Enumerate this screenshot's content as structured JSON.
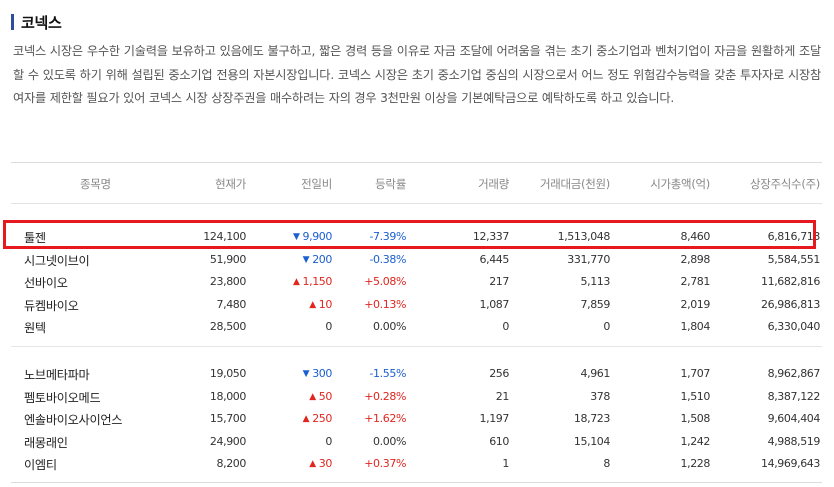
{
  "header": {
    "title": "코넥스"
  },
  "description": "코넥스 시장은 우수한 기술력을 보유하고 있음에도 불구하고, 짧은 경력 등을 이유로 자금 조달에 어려움을 겪는 초기 중소기업과 벤처기업이 자금을 원활하게 조달할 수 있도록 하기 위해 설립된 중소기업 전용의 자본시장입니다. 코넥스 시장은 초기 중소기업 중심의 시장으로서 어느 정도 위험감수능력을 갖춘 투자자로 시장참여자를 제한할 필요가 있어 코넥스 시장 상장주권을 매수하려는 자의 경우 3천만원 이상을 기본예탁금으로 예탁하도록 하고 있습니다.",
  "table": {
    "columns": [
      "종목명",
      "현재가",
      "전일비",
      "등락률",
      "거래량",
      "거래대금(천원)",
      "시가총액(억)",
      "상장주식수(주)"
    ],
    "groups": [
      [
        {
          "name": "툴젠",
          "price": "124,100",
          "dir": "down",
          "arrow": "▼",
          "change": "9,900",
          "rate": "-7.39%",
          "volume": "12,337",
          "amount": "1,513,048",
          "cap": "8,460",
          "shares": "6,816,713"
        },
        {
          "name": "시그넷이브이",
          "price": "51,900",
          "dir": "down",
          "arrow": "▼",
          "change": "200",
          "rate": "-0.38%",
          "volume": "6,445",
          "amount": "331,770",
          "cap": "2,898",
          "shares": "5,584,551"
        },
        {
          "name": "선바이오",
          "price": "23,800",
          "dir": "up",
          "arrow": "▲",
          "change": "1,150",
          "rate": "+5.08%",
          "volume": "217",
          "amount": "5,113",
          "cap": "2,781",
          "shares": "11,682,816"
        },
        {
          "name": "듀켐바이오",
          "price": "7,480",
          "dir": "up",
          "arrow": "▲",
          "change": "10",
          "rate": "+0.13%",
          "volume": "1,087",
          "amount": "7,859",
          "cap": "2,019",
          "shares": "26,986,813"
        },
        {
          "name": "원텍",
          "price": "28,500",
          "dir": "flat",
          "arrow": "",
          "change": "0",
          "rate": "0.00%",
          "volume": "0",
          "amount": "0",
          "cap": "1,804",
          "shares": "6,330,040"
        }
      ],
      [
        {
          "name": "노브메타파마",
          "price": "19,050",
          "dir": "down",
          "arrow": "▼",
          "change": "300",
          "rate": "-1.55%",
          "volume": "256",
          "amount": "4,961",
          "cap": "1,707",
          "shares": "8,962,867"
        },
        {
          "name": "펨토바이오메드",
          "price": "18,000",
          "dir": "up",
          "arrow": "▲",
          "change": "50",
          "rate": "+0.28%",
          "volume": "21",
          "amount": "378",
          "cap": "1,510",
          "shares": "8,387,122"
        },
        {
          "name": "엔솔바이오사이언스",
          "price": "15,700",
          "dir": "up",
          "arrow": "▲",
          "change": "250",
          "rate": "+1.62%",
          "volume": "1,197",
          "amount": "18,723",
          "cap": "1,508",
          "shares": "9,604,404"
        },
        {
          "name": "래몽래인",
          "price": "24,900",
          "dir": "flat",
          "arrow": "",
          "change": "0",
          "rate": "0.00%",
          "volume": "610",
          "amount": "15,104",
          "cap": "1,242",
          "shares": "4,988,519"
        },
        {
          "name": "이엠티",
          "price": "8,200",
          "dir": "up",
          "arrow": "▲",
          "change": "30",
          "rate": "+0.37%",
          "volume": "1",
          "amount": "8",
          "cap": "1,228",
          "shares": "14,969,643"
        }
      ]
    ]
  },
  "colors": {
    "up": "#e0261f",
    "down": "#1b5fd0",
    "highlight": "#e6191f",
    "title_bar": "#2d4f9b"
  }
}
